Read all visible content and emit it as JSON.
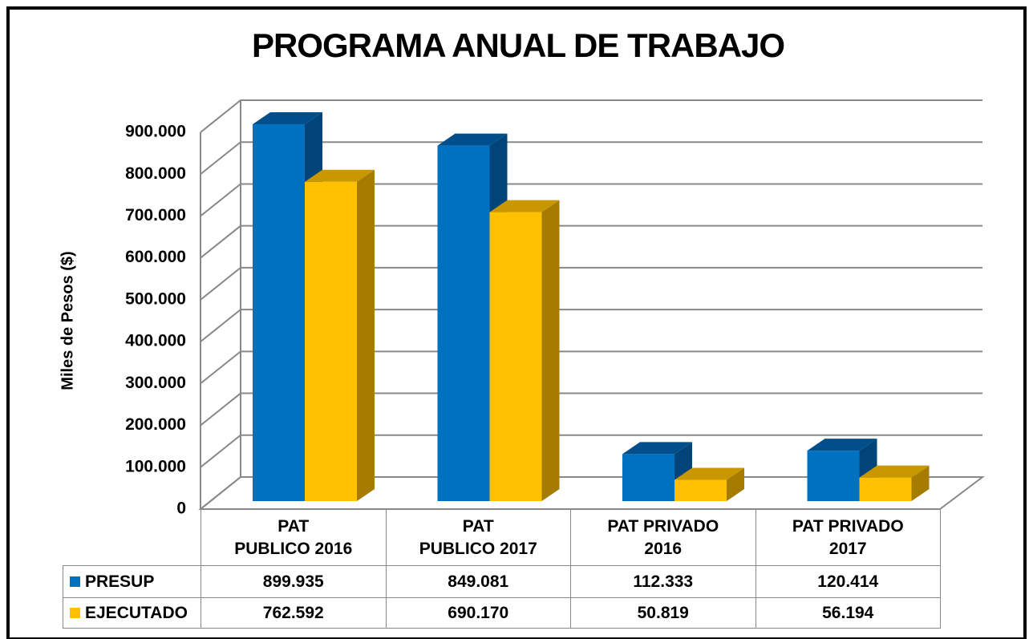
{
  "chart_data": {
    "type": "bar3d",
    "title": "PROGRAMA ANUAL DE TRABAJO",
    "y_axis_label": "Miles de Pesos ($)",
    "categories": [
      "PAT   PUBLICO 2016",
      "PAT   PUBLICO 2017",
      "PAT PRIVADO 2016",
      "PAT PRIVADO 2017"
    ],
    "series": [
      {
        "name": "PRESUP",
        "color": "#0070c0",
        "values": [
          899935,
          849081,
          112333,
          120414
        ],
        "value_labels": [
          "899.935",
          "849.081",
          "112.333",
          "120.414"
        ]
      },
      {
        "name": "EJECUTADO",
        "color": "#ffc000",
        "values": [
          762592,
          690170,
          50819,
          56194
        ],
        "value_labels": [
          "762.592",
          "690.170",
          "50.819",
          "56.194"
        ]
      }
    ],
    "ylim": [
      0,
      900000
    ],
    "yticks": [
      0,
      {
        "value": 100000,
        "label": "100.000"
      },
      {
        "value": 200000,
        "label": "200.000"
      },
      {
        "value": 300000,
        "label": "300.000"
      },
      {
        "value": 400000,
        "label": "400.000"
      },
      {
        "value": 500000,
        "label": "500.000"
      },
      {
        "value": 600000,
        "label": "600.000"
      },
      {
        "value": 700000,
        "label": "700.000"
      },
      {
        "value": 800000,
        "label": "800.000"
      },
      {
        "value": 900000,
        "label": "900.000"
      }
    ],
    "grid": true
  }
}
